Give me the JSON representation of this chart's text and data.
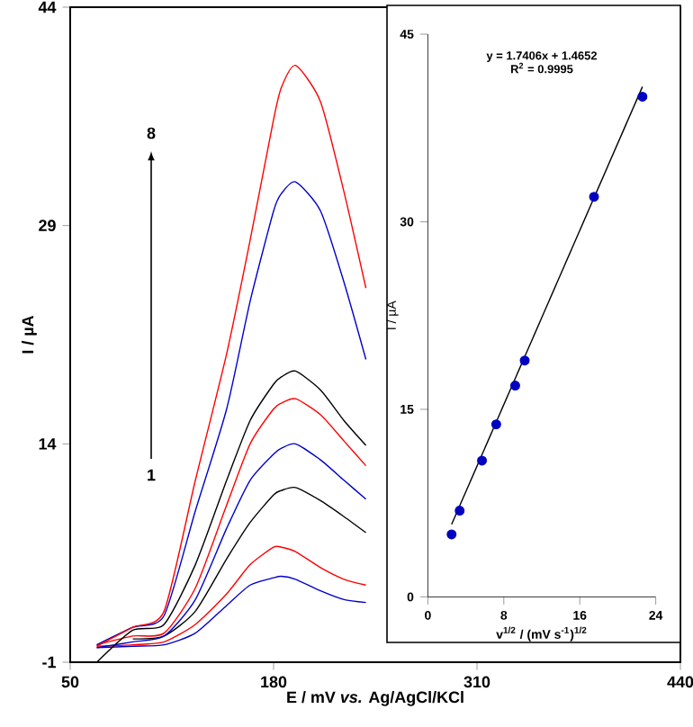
{
  "chart_data": [
    {
      "type": "line",
      "xlabel": "**E / mV *vs.* Ag/AgCl/KCl**",
      "ylabel": "**I / µA**",
      "xlim": [
        50,
        440
      ],
      "ylim": [
        -1,
        44
      ],
      "xticks": [
        50,
        180,
        310,
        440
      ],
      "yticks": [
        -1,
        14,
        29,
        44
      ],
      "marker": "none",
      "line_style": "solid",
      "annotations": [
        "8",
        "1"
      ],
      "x": [
        67,
        90,
        110,
        130,
        150,
        165,
        180,
        185,
        194,
        210,
        225,
        239
      ],
      "series": [
        {
          "color": "#0000cc",
          "values": [
            0,
            0.1,
            0.2,
            1.0,
            2.9,
            4.3,
            4.8,
            4.9,
            4.7,
            3.9,
            3.3,
            3.1
          ]
        },
        {
          "color": "#ff0000",
          "values": [
            0.1,
            0.2,
            0.4,
            1.6,
            3.7,
            5.7,
            6.9,
            6.9,
            6.6,
            5.5,
            4.7,
            4.3
          ]
        },
        {
          "color": "#000000",
          "values": [
            null,
            0.6,
            0.8,
            2.5,
            6.1,
            8.6,
            10.5,
            10.8,
            11.0,
            10.1,
            9.0,
            7.9
          ]
        },
        {
          "color": "#0000cc",
          "values": [
            0,
            0.4,
            0.8,
            3.3,
            8.2,
            11.5,
            13.3,
            13.7,
            14.0,
            12.9,
            11.5,
            10.2
          ]
        },
        {
          "color": "#ff0000",
          "values": [
            0.2,
            0.8,
            1.0,
            4.1,
            9.8,
            14.0,
            16.4,
            16.8,
            17.1,
            16.0,
            14.2,
            12.5
          ]
        },
        {
          "color": "#000000",
          "values": [
            -1,
            1.2,
            1.6,
            5.7,
            11.5,
            15.6,
            18.1,
            18.6,
            19.0,
            17.7,
            15.6,
            13.9
          ]
        },
        {
          "color": "#0000cc",
          "values": [
            0.2,
            1.4,
            2.2,
            9.4,
            16.4,
            23.8,
            30.0,
            31.2,
            32.0,
            30.0,
            25.1,
            19.8
          ]
        },
        {
          "color": "#ff0000",
          "values": [
            0.1,
            1.4,
            2.5,
            11.5,
            20.2,
            28.0,
            36.3,
            38.5,
            40.0,
            37.5,
            31.3,
            24.7
          ]
        }
      ]
    },
    {
      "type": "scatter",
      "xlabel": "**v$^{1/2}$ / (mV s$^{-1}$)$^{1/2}$**",
      "ylabel": "I / µA",
      "xlim": [
        0,
        24
      ],
      "ylim": [
        0,
        45
      ],
      "xticks": [
        0,
        8,
        16,
        24
      ],
      "yticks": [
        0,
        15,
        30,
        45
      ],
      "annotations": [
        "y = 1.7406x + 1.4652",
        "R$^{2}$ = 0.9995"
      ],
      "series": [
        {
          "color": "#0000c0",
          "marker": "circle",
          "x": [
            2.5,
            3.35,
            5.7,
            7.2,
            9.2,
            10.2,
            17.5,
            22.6
          ],
          "values": [
            5.0,
            6.9,
            10.9,
            13.8,
            16.9,
            18.9,
            32.0,
            40.0
          ]
        },
        {
          "type": "line",
          "marker": "none",
          "color": "#000000",
          "x": [
            2.5,
            22.6
          ],
          "values": [
            5.8,
            40.8
          ]
        }
      ]
    }
  ]
}
